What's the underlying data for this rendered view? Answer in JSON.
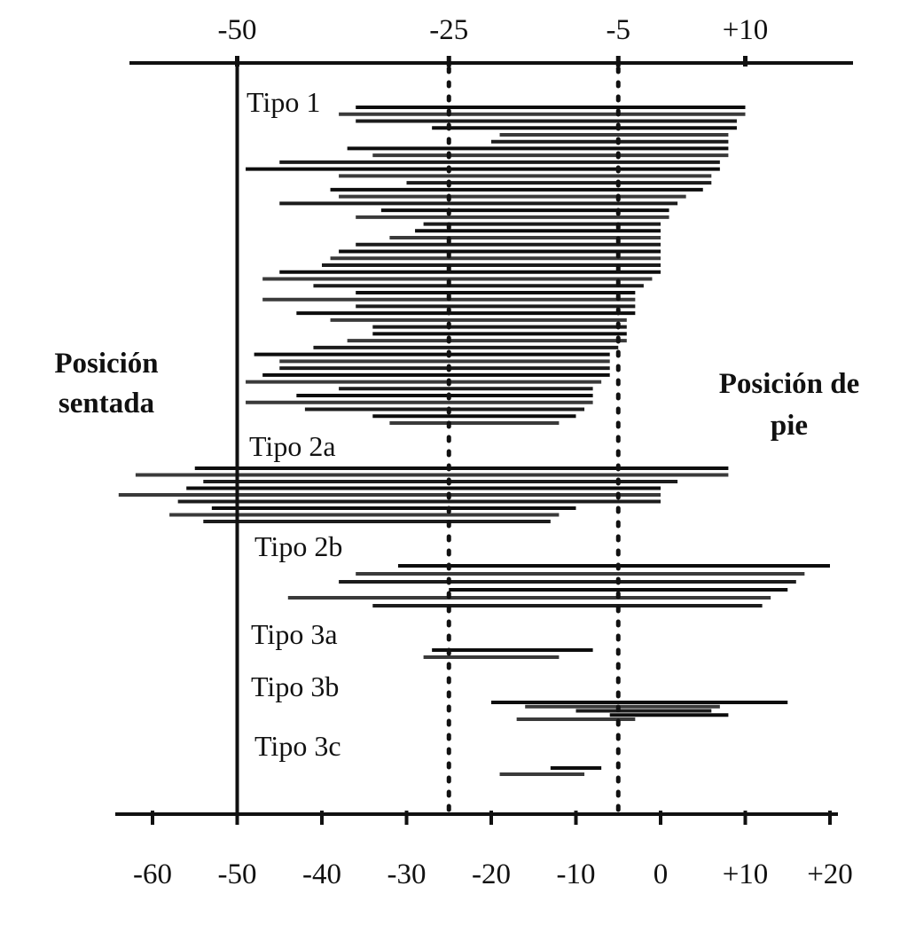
{
  "chart_data": {
    "type": "bar",
    "subtype": "range-bars",
    "title": "",
    "xlim": [
      -62,
      20
    ],
    "top_axis": {
      "ticks": [
        -50,
        -25,
        -5,
        10
      ],
      "labels": [
        "-50",
        "-25",
        "-5",
        "+10"
      ]
    },
    "bottom_axis": {
      "ticks": [
        -60,
        -50,
        -40,
        -30,
        -20,
        -10,
        0,
        10,
        20
      ],
      "labels": [
        "-60",
        "-50",
        "-40",
        "-30",
        "-20",
        "-10",
        "0",
        "+10",
        "+20"
      ]
    },
    "reference_lines": [
      {
        "x": -50,
        "style": "solid"
      },
      {
        "x": -25,
        "style": "dotted"
      },
      {
        "x": -5,
        "style": "dotted"
      }
    ],
    "annotations": {
      "left": [
        "Posición",
        "sentada"
      ],
      "right": [
        "Posición de",
        "pie"
      ]
    },
    "groups": [
      {
        "label": "Tipo 1",
        "ranges": [
          [
            -36,
            10
          ],
          [
            -38,
            10
          ],
          [
            -36,
            9
          ],
          [
            -27,
            9
          ],
          [
            -19,
            8
          ],
          [
            -20,
            8
          ],
          [
            -37,
            8
          ],
          [
            -34,
            8
          ],
          [
            -45,
            7
          ],
          [
            -49,
            7
          ],
          [
            -38,
            6
          ],
          [
            -30,
            6
          ],
          [
            -39,
            5
          ],
          [
            -38,
            3
          ],
          [
            -45,
            2
          ],
          [
            -33,
            1
          ],
          [
            -36,
            1
          ],
          [
            -28,
            0
          ],
          [
            -29,
            0
          ],
          [
            -32,
            0
          ],
          [
            -36,
            0
          ],
          [
            -38,
            0
          ],
          [
            -39,
            0
          ],
          [
            -40,
            0
          ],
          [
            -45,
            0
          ],
          [
            -47,
            -1
          ],
          [
            -41,
            -2
          ],
          [
            -36,
            -3
          ],
          [
            -47,
            -3
          ],
          [
            -36,
            -3
          ],
          [
            -43,
            -3
          ],
          [
            -39,
            -4
          ],
          [
            -34,
            -4
          ],
          [
            -34,
            -4
          ],
          [
            -37,
            -4
          ],
          [
            -41,
            -5
          ],
          [
            -48,
            -6
          ],
          [
            -45,
            -6
          ],
          [
            -45,
            -6
          ],
          [
            -47,
            -6
          ],
          [
            -49,
            -7
          ],
          [
            -38,
            -8
          ],
          [
            -43,
            -8
          ],
          [
            -49,
            -8
          ],
          [
            -42,
            -9
          ],
          [
            -34,
            -10
          ],
          [
            -32,
            -12
          ]
        ]
      },
      {
        "label": "Tipo 2a",
        "ranges": [
          [
            -55,
            8
          ],
          [
            -62,
            8
          ],
          [
            -54,
            2
          ],
          [
            -56,
            0
          ],
          [
            -64,
            0
          ],
          [
            -57,
            0
          ],
          [
            -53,
            -10
          ],
          [
            -58,
            -12
          ],
          [
            -54,
            -13
          ]
        ]
      },
      {
        "label": "Tipo 2b",
        "ranges": [
          [
            -31,
            20
          ],
          [
            -36,
            17
          ],
          [
            -38,
            16
          ],
          [
            -25,
            15
          ],
          [
            -44,
            13
          ],
          [
            -34,
            12
          ]
        ]
      },
      {
        "label": "Tipo 3a",
        "ranges": [
          [
            -27,
            -8
          ],
          [
            -28,
            -12
          ]
        ]
      },
      {
        "label": "Tipo 3b",
        "ranges": [
          [
            -20,
            15
          ],
          [
            -16,
            7
          ],
          [
            -10,
            6
          ],
          [
            -6,
            8
          ],
          [
            -17,
            -3
          ]
        ]
      },
      {
        "label": "Tipo 3c",
        "ranges": [
          [
            -13,
            -7
          ],
          [
            -19,
            -9
          ]
        ]
      }
    ]
  }
}
